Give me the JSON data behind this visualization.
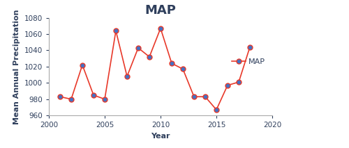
{
  "years": [
    2001,
    2002,
    2003,
    2004,
    2005,
    2006,
    2007,
    2008,
    2009,
    2010,
    2011,
    2012,
    2013,
    2014,
    2015,
    2016,
    2017,
    2018
  ],
  "values": [
    983,
    980,
    1022,
    985,
    980,
    1064,
    1008,
    1043,
    1032,
    1067,
    1024,
    1017,
    983,
    983,
    967,
    997,
    1001,
    1044
  ],
  "title": "MAP",
  "xlabel": "Year",
  "ylabel": "Mean Annual Precipitation",
  "line_color": "#E8392A",
  "marker_color": "#4472C4",
  "marker_edge_color": "#E8392A",
  "legend_label": "MAP",
  "xlim": [
    2000,
    2020
  ],
  "ylim": [
    960,
    1080
  ],
  "yticks": [
    960,
    980,
    1000,
    1020,
    1040,
    1060,
    1080
  ],
  "xticks": [
    2000,
    2005,
    2010,
    2015,
    2020
  ],
  "title_fontsize": 13,
  "axis_label_fontsize": 8,
  "tick_fontsize": 7.5,
  "legend_fontsize": 8
}
